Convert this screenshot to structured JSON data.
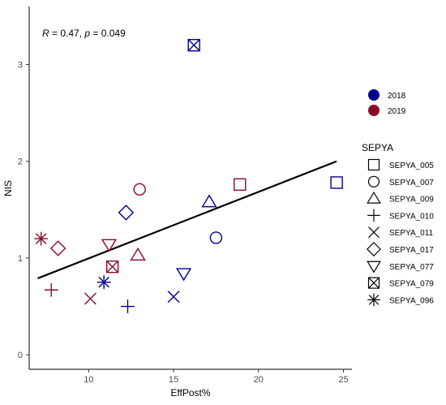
{
  "chart_data": {
    "type": "scatter",
    "xlabel": "EffPost%",
    "ylabel": "NIS",
    "xlim": [
      6.5,
      25.5
    ],
    "ylim": [
      -0.15,
      3.6
    ],
    "x_ticks": [
      10,
      15,
      20,
      25
    ],
    "y_ticks": [
      0,
      1,
      2,
      3
    ],
    "x_tick_labels": [
      "10",
      "15",
      "20",
      "25"
    ],
    "y_tick_labels": [
      "0",
      "1",
      "2",
      "3"
    ],
    "grid": false,
    "annotation": {
      "r_symbol": "R",
      "r_text": " = 0.47, ",
      "p_symbol": "p",
      "p_text": " = 0.049"
    },
    "regression_line": {
      "x": [
        7.0,
        24.6
      ],
      "y": [
        0.79,
        2.0
      ]
    },
    "color_legend": {
      "items": [
        {
          "label": "2018",
          "color": "#00008B"
        },
        {
          "label": "2019",
          "color": "#8B0A28"
        }
      ]
    },
    "shape_legend": {
      "title": "SEPYA",
      "items": [
        {
          "label": "SEPYA_005",
          "shape": "square"
        },
        {
          "label": "SEPYA_007",
          "shape": "circle"
        },
        {
          "label": "SEPYA_009",
          "shape": "triangle-up"
        },
        {
          "label": "SEPYA_010",
          "shape": "plus"
        },
        {
          "label": "SEPYA_011",
          "shape": "cross"
        },
        {
          "label": "SEPYA_017",
          "shape": "diamond"
        },
        {
          "label": "SEPYA_077",
          "shape": "triangle-down"
        },
        {
          "label": "SEPYA_079",
          "shape": "square-cross"
        },
        {
          "label": "SEPYA_096",
          "shape": "asterisk"
        }
      ]
    },
    "points": [
      {
        "x": 24.6,
        "y": 1.78,
        "shape": "square",
        "year": "2018"
      },
      {
        "x": 18.9,
        "y": 1.76,
        "shape": "square",
        "year": "2019"
      },
      {
        "x": 17.5,
        "y": 1.21,
        "shape": "circle",
        "year": "2018"
      },
      {
        "x": 13.0,
        "y": 1.71,
        "shape": "circle",
        "year": "2019"
      },
      {
        "x": 17.1,
        "y": 1.58,
        "shape": "triangle-up",
        "year": "2018"
      },
      {
        "x": 12.9,
        "y": 1.03,
        "shape": "triangle-up",
        "year": "2019"
      },
      {
        "x": 12.3,
        "y": 0.5,
        "shape": "plus",
        "year": "2018"
      },
      {
        "x": 7.8,
        "y": 0.67,
        "shape": "plus",
        "year": "2019"
      },
      {
        "x": 15.0,
        "y": 0.6,
        "shape": "cross",
        "year": "2018"
      },
      {
        "x": 10.1,
        "y": 0.58,
        "shape": "cross",
        "year": "2019"
      },
      {
        "x": 12.2,
        "y": 1.47,
        "shape": "diamond",
        "year": "2018"
      },
      {
        "x": 8.2,
        "y": 1.1,
        "shape": "diamond",
        "year": "2019"
      },
      {
        "x": 15.6,
        "y": 0.84,
        "shape": "triangle-down",
        "year": "2018"
      },
      {
        "x": 11.2,
        "y": 1.14,
        "shape": "triangle-down",
        "year": "2019"
      },
      {
        "x": 16.2,
        "y": 3.2,
        "shape": "square-cross",
        "year": "2018"
      },
      {
        "x": 11.4,
        "y": 0.91,
        "shape": "square-cross",
        "year": "2019"
      },
      {
        "x": 10.9,
        "y": 0.75,
        "shape": "asterisk",
        "year": "2018"
      },
      {
        "x": 7.2,
        "y": 1.2,
        "shape": "asterisk",
        "year": "2019"
      }
    ]
  }
}
